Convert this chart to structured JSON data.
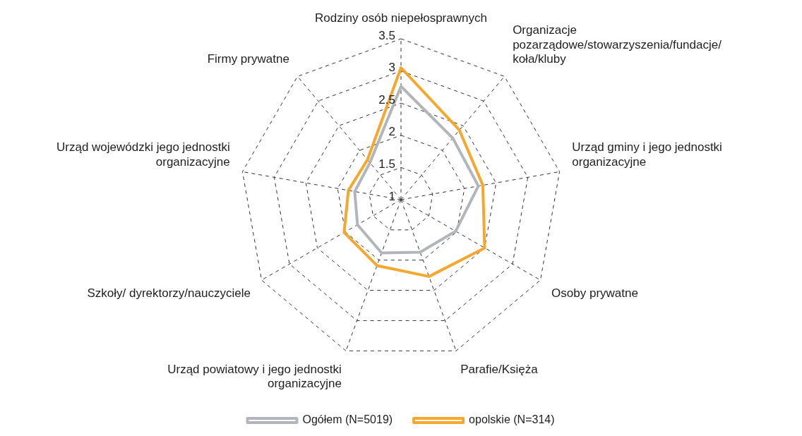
{
  "chart_data": {
    "type": "radar",
    "categories": [
      "Rodziny osób niepełosprawnych",
      "Organizacje\npozarządowe/stowarzyszenia/fundacje/\nkoła/kluby",
      "Urząd gminy i jego jednostki\norganizacyjne",
      "Osoby prywatne",
      "Parafie/Księża",
      "Urząd powiatowy i jego jednostki\norganizacyjne",
      "Szkoły/ dyrektorzy/nauczyciele",
      "Urząd wojewódzki jego jednostki\norganizacyjne",
      "Firmy prywatne"
    ],
    "series": [
      {
        "name": "Ogółem (N=5019)",
        "color": "#b2b6bb",
        "values": [
          2.76,
          2.25,
          2.22,
          1.98,
          1.87,
          1.88,
          1.78,
          1.73,
          1.75
        ]
      },
      {
        "name": "opolskie (N=314)",
        "color": "#f5a72e",
        "values": [
          3.05,
          2.41,
          2.29,
          2.5,
          2.27,
          2.09,
          2.02,
          1.83,
          1.81
        ]
      }
    ],
    "ylim": [
      1,
      3.5
    ],
    "yticks": [
      1,
      1.5,
      2,
      2.5,
      3,
      3.5
    ],
    "grid": true,
    "legend": "bottom",
    "marker": "none",
    "line_style": "solid"
  }
}
